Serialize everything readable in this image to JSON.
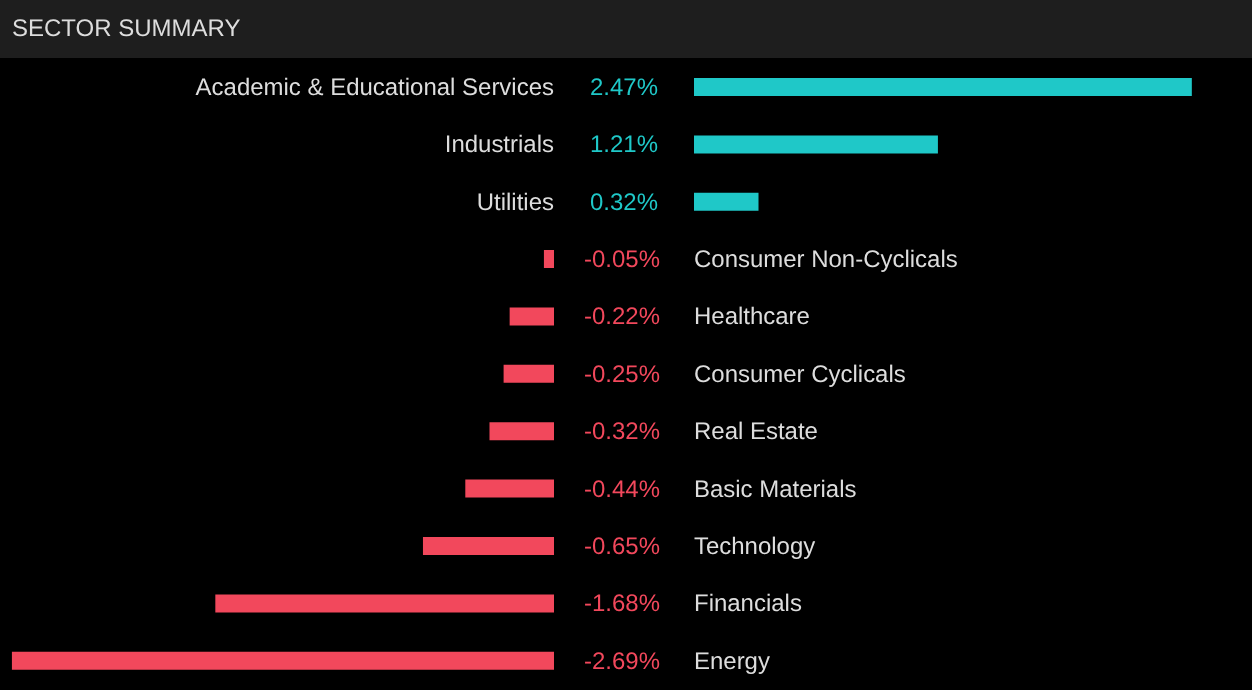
{
  "chart_data": [
    {
      "type": "bar",
      "orientation": "horizontal",
      "title": "SECTOR SUMMARY",
      "categories": [
        "Academic & Educational Services",
        "Industrials",
        "Utilities"
      ],
      "values": [
        2.47,
        1.21,
        0.32
      ],
      "value_labels": [
        "2.47%",
        "1.21%",
        "0.32%"
      ],
      "colors": [
        "#1fc8c8",
        "#1fc8c8",
        "#1fc8c8"
      ]
    },
    {
      "type": "bar",
      "orientation": "horizontal",
      "categories": [
        "Consumer Non-Cyclicals",
        "Healthcare",
        "Consumer Cyclicals",
        "Real Estate",
        "Basic Materials",
        "Technology",
        "Financials",
        "Energy"
      ],
      "values": [
        -0.05,
        -0.22,
        -0.25,
        -0.32,
        -0.44,
        -0.65,
        -1.68,
        -2.69
      ],
      "value_labels": [
        "-0.05%",
        "-0.22%",
        "-0.25%",
        "-0.32%",
        "-0.44%",
        "-0.65%",
        "-1.68%",
        "-2.69%"
      ],
      "colors": [
        "#f2485c",
        "#f2485c",
        "#f2485c",
        "#f2485c",
        "#f2485c",
        "#f2485c",
        "#f2485c",
        "#f2485c"
      ]
    }
  ]
}
